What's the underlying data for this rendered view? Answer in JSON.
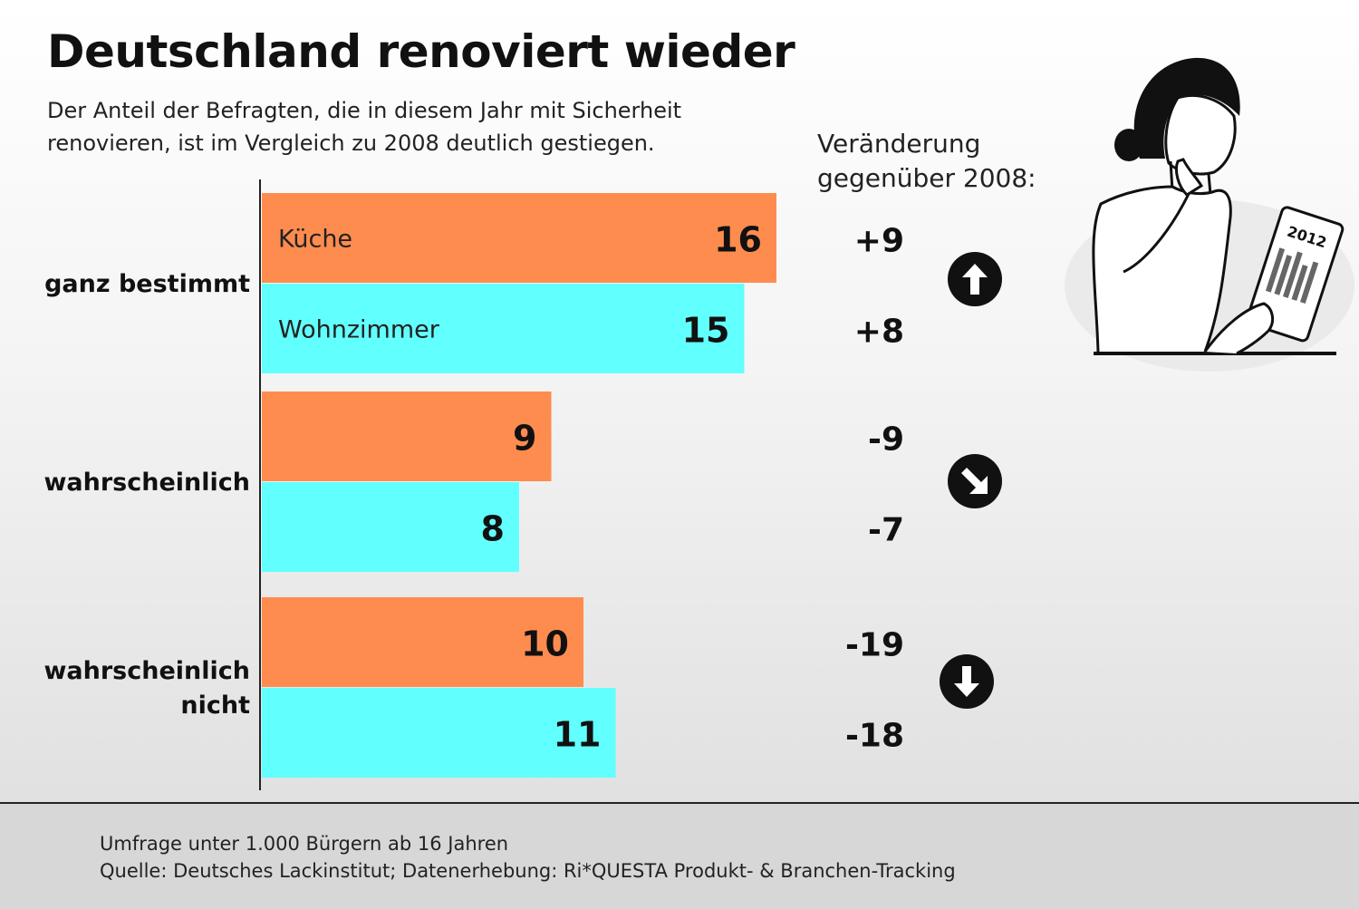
{
  "title": "Deutschland renoviert wieder",
  "subtitle": "Der Anteil der Befragten, die in diesem Jahr mit Sicherheit renovieren, ist im Vergleich zu 2008 deutlich gestiegen.",
  "change_header": "Veränderung gegenüber 2008:",
  "colors": {
    "kueche": "#ff8c4f",
    "wohnzimmer": "#62ffff",
    "text": "#111111"
  },
  "groups": [
    {
      "label_lines": [
        "ganz bestimmt"
      ],
      "trend_icon": "arrow-up-icon"
    },
    {
      "label_lines": [
        "wahrscheinlich"
      ],
      "trend_icon": "arrow-down-right-icon"
    },
    {
      "label_lines": [
        "wahrscheinlich",
        "nicht"
      ],
      "trend_icon": "arrow-down-icon"
    }
  ],
  "illustration": {
    "name": "woman-thinking-icon",
    "calendar_text": "2012"
  },
  "chart_data": {
    "type": "bar",
    "orientation": "horizontal",
    "categories": [
      "ganz bestimmt",
      "wahrscheinlich",
      "wahrscheinlich nicht"
    ],
    "series": [
      {
        "name": "Küche",
        "values": [
          16,
          9,
          10
        ],
        "changes": [
          "+9",
          "-9",
          "-19"
        ]
      },
      {
        "name": "Wohnzimmer",
        "values": [
          15,
          8,
          11
        ],
        "changes": [
          "+8",
          "-7",
          "-18"
        ]
      }
    ],
    "xlim": [
      0,
      16
    ],
    "grid": false
  },
  "footer": {
    "line1": "Umfrage unter 1.000 Bürgern ab 16 Jahren",
    "line2": "Quelle: Deutsches Lackinstitut; Datenerhebung: Ri*QUESTA Produkt- & Branchen-Tracking"
  }
}
